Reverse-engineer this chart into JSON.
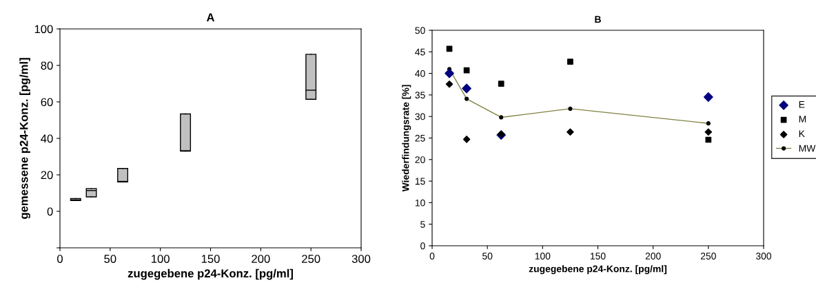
{
  "chart_data": [
    {
      "type": "box",
      "title": "A",
      "xlabel": "zugegebene p24-Konz. [pg/ml]",
      "ylabel": "gemessene p24-Konz. [pg/ml]",
      "x": [
        15.625,
        31.25,
        62.5,
        125,
        250
      ],
      "color": "#c0c0c0",
      "boxes": [
        {
          "low": 5.9,
          "q1": 5.9,
          "median": 6.2,
          "q3": 7.0,
          "high": 7.0
        },
        {
          "low": 7.9,
          "q1": 7.9,
          "median": 11.4,
          "q3": 12.5,
          "high": 12.5
        },
        {
          "low": 16.1,
          "q1": 16.1,
          "median": 16.4,
          "q3": 23.5,
          "high": 23.5
        },
        {
          "low": 33.0,
          "q1": 33.0,
          "median": 33.2,
          "q3": 53.4,
          "high": 53.4
        },
        {
          "low": 61.4,
          "q1": 61.4,
          "median": 66.4,
          "q3": 86.1,
          "high": 86.1
        }
      ],
      "xlim": [
        0,
        300
      ],
      "xticks": [
        0,
        50,
        100,
        150,
        200,
        250,
        300
      ],
      "ylim": [
        -20,
        100
      ],
      "yticks": [
        {
          "value": -20,
          "label": null
        },
        0,
        20,
        40,
        60,
        80,
        100
      ],
      "grid": false
    },
    {
      "type": "scatter",
      "title": "B",
      "xlabel": "zugegebene p24-Konz. [pg/ml]",
      "ylabel": "Wiederfindungsrate [%]",
      "x": [
        15.625,
        31.25,
        62.5,
        125,
        250
      ],
      "series": [
        {
          "name": "E",
          "color": "#000080",
          "marker": "diamond",
          "values": [
            40.0,
            36.5,
            25.7,
            null,
            34.5
          ]
        },
        {
          "name": "M",
          "color": "#000000",
          "marker": "square",
          "values": [
            45.7,
            40.7,
            37.6,
            42.7,
            24.6
          ]
        },
        {
          "name": "K",
          "color": "#000000",
          "marker": "diamond",
          "values": [
            37.5,
            24.7,
            25.9,
            26.4,
            26.4
          ]
        },
        {
          "name": "MW",
          "type": "line",
          "color": "#808040",
          "marker": "circle",
          "line_style": "solid",
          "values": [
            41.0,
            34.1,
            29.8,
            31.8,
            28.4
          ]
        }
      ],
      "xlim": [
        0,
        300
      ],
      "xticks": [
        0,
        50,
        100,
        150,
        200,
        250,
        300
      ],
      "ylim": [
        0,
        50
      ],
      "yticks": [
        0,
        5,
        10,
        15,
        20,
        25,
        30,
        35,
        40,
        45,
        50
      ],
      "grid": false,
      "legend": "right"
    }
  ]
}
